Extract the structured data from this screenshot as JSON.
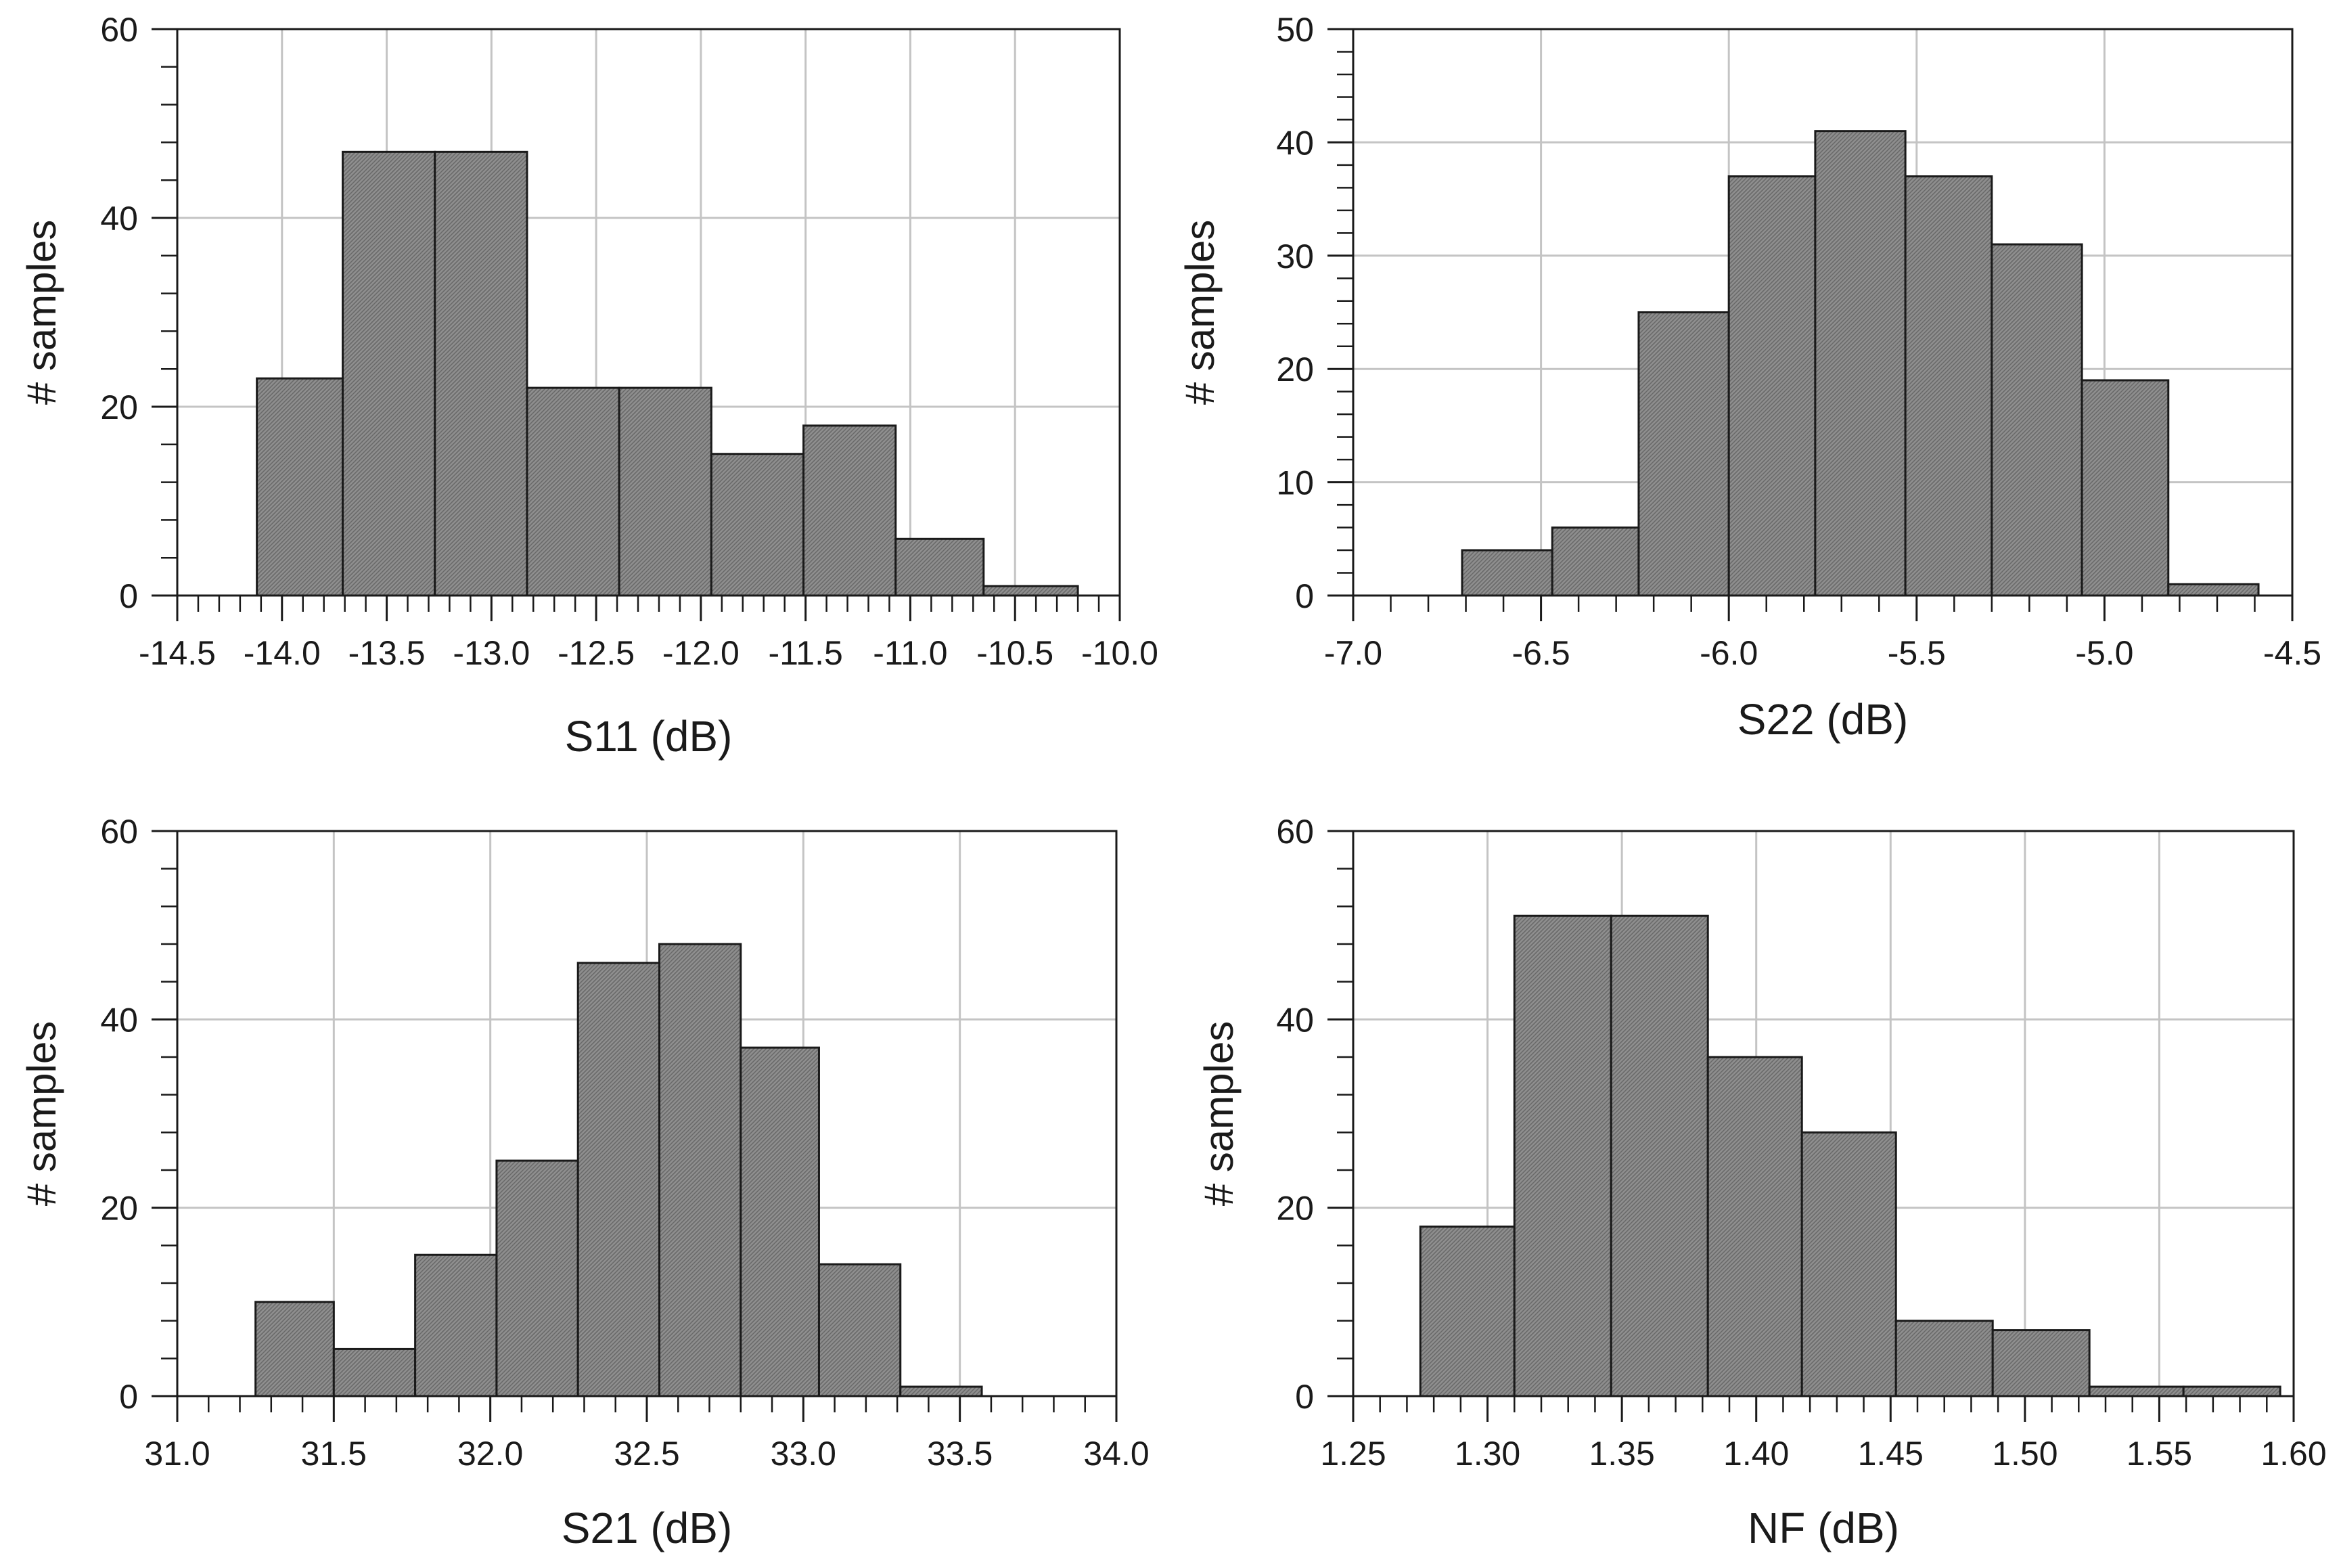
{
  "chart_data": [
    {
      "type": "histogram",
      "xlabel": "S11 (dB)",
      "ylabel": "# samples",
      "xlim": [
        -14.5,
        -10.0
      ],
      "ylim": [
        0,
        60
      ],
      "xticks": [
        -14.5,
        -14.0,
        -13.5,
        -13.0,
        -12.5,
        -12.0,
        -11.5,
        -11.0,
        -10.5,
        -10.0
      ],
      "xtick_labels": [
        "-14.5",
        "-14.0",
        "-13.5",
        "-13.0",
        "-12.5",
        "-12.0",
        "-11.5",
        "-11.0",
        "-10.5",
        "-10.0"
      ],
      "yticks": [
        0,
        20,
        40,
        60
      ],
      "ytick_labels": [
        "0",
        "20",
        "40",
        "60"
      ],
      "grid": true,
      "bin_edges": [
        -14.12,
        -13.71,
        -13.27,
        -12.83,
        -12.39,
        -11.95,
        -11.51,
        -11.07,
        -10.65,
        -10.2
      ],
      "values": [
        23,
        47,
        47,
        22,
        22,
        15,
        18,
        6,
        1
      ]
    },
    {
      "type": "histogram",
      "xlabel": "S22 (dB)",
      "ylabel": "# samples",
      "xlim": [
        -7.0,
        -4.5
      ],
      "ylim": [
        0,
        50
      ],
      "xticks": [
        -7.0,
        -6.5,
        -6.0,
        -5.5,
        -5.0,
        -4.5
      ],
      "xtick_labels": [
        "-7.0",
        "-6.5",
        "-6.0",
        "-5.5",
        "-5.0",
        "-4.5"
      ],
      "yticks": [
        0,
        10,
        20,
        30,
        40,
        50
      ],
      "ytick_labels": [
        "0",
        "10",
        "20",
        "30",
        "40",
        "50"
      ],
      "grid": true,
      "bin_edges": [
        -6.71,
        -6.47,
        -6.24,
        -6.0,
        -5.77,
        -5.53,
        -5.3,
        -5.06,
        -4.83,
        -4.59
      ],
      "values": [
        4,
        6,
        25,
        37,
        41,
        37,
        31,
        19,
        1
      ]
    },
    {
      "type": "histogram",
      "xlabel": "S21 (dB)",
      "ylabel": "# samples",
      "xlim": [
        31.0,
        34.0
      ],
      "ylim": [
        0,
        60
      ],
      "xticks": [
        31.0,
        31.5,
        32.0,
        32.5,
        33.0,
        33.5,
        34.0
      ],
      "xtick_labels": [
        "31.0",
        "31.5",
        "32.0",
        "32.5",
        "33.0",
        "33.5",
        "34.0"
      ],
      "yticks": [
        0,
        20,
        40,
        60
      ],
      "ytick_labels": [
        "0",
        "20",
        "40",
        "60"
      ],
      "grid": true,
      "bin_edges": [
        31.25,
        31.5,
        31.76,
        32.02,
        32.28,
        32.54,
        32.8,
        33.05,
        33.31,
        33.57
      ],
      "values": [
        10,
        5,
        15,
        25,
        46,
        48,
        37,
        14,
        1
      ]
    },
    {
      "type": "histogram",
      "xlabel": "NF (dB)",
      "ylabel": "# samples",
      "xlim": [
        1.25,
        1.6
      ],
      "ylim": [
        0,
        60
      ],
      "xticks": [
        1.25,
        1.3,
        1.35,
        1.4,
        1.45,
        1.5,
        1.55,
        1.6
      ],
      "xtick_labels": [
        "1.25",
        "1.30",
        "1.35",
        "1.40",
        "1.45",
        "1.50",
        "1.55",
        "1.60"
      ],
      "yticks": [
        0,
        20,
        40,
        60
      ],
      "ytick_labels": [
        "0",
        "20",
        "40",
        "60"
      ],
      "grid": true,
      "bin_edges": [
        1.275,
        1.31,
        1.346,
        1.382,
        1.417,
        1.452,
        1.488,
        1.524,
        1.559,
        1.595
      ],
      "values": [
        18,
        51,
        51,
        36,
        28,
        8,
        7,
        1,
        1
      ]
    }
  ]
}
